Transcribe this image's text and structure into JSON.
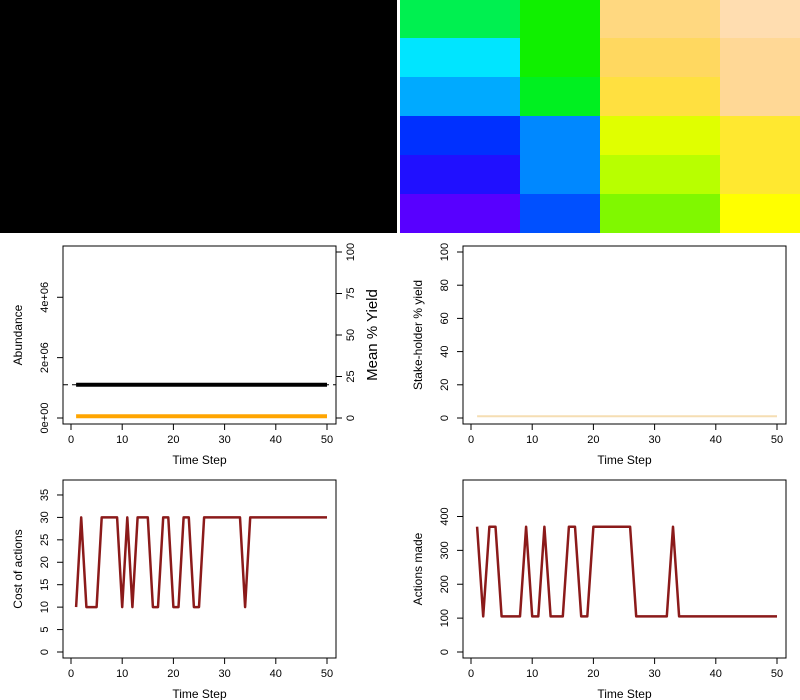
{
  "colors": {
    "abundance_line": "#000000",
    "yield_line": "#FFA500",
    "stakeholder_line": "#F5DEB3",
    "action_line": "#8B1A1A",
    "background": "#FFFFFF",
    "black_panel": "#000000"
  },
  "chart_data": [
    {
      "id": "cell-heatmap",
      "type": "heatmap",
      "rows": 6,
      "columns": 4,
      "cells": [
        [
          "#00F050",
          "#10F000",
          "#FFD880",
          "#FFDDB0"
        ],
        [
          "#00E5FF",
          "#10F000",
          "#FFD860",
          "#FFD896"
        ],
        [
          "#00AAFF",
          "#00F020",
          "#FFE040",
          "#FFD896"
        ],
        [
          "#0030FF",
          "#0088FF",
          "#E0FF00",
          "#FFE830"
        ],
        [
          "#2010FF",
          "#0088FF",
          "#B8FF00",
          "#FFE830"
        ],
        [
          "#5800FF",
          "#0050FF",
          "#80F800",
          "#FFFF00"
        ]
      ]
    },
    {
      "id": "abundance-plot",
      "type": "line",
      "xlabel": "Time Step",
      "ylabel": "Abundance",
      "ylabel_right": "Mean % Yield",
      "xlim": [
        0,
        50
      ],
      "ylim": [
        0,
        5500000
      ],
      "ylim_right": [
        0,
        100
      ],
      "x_ticks": [
        0,
        10,
        20,
        30,
        40,
        50
      ],
      "x_tick_labels": [
        "0",
        "10",
        "20",
        "30",
        "40",
        "50"
      ],
      "y_ticks": [
        0,
        2000000,
        4000000
      ],
      "y_tick_labels": [
        "0e+00",
        "2e+06",
        "4e+06"
      ],
      "y_ticks_right": [
        0,
        25,
        50,
        75,
        100
      ],
      "y_tick_labels_right": [
        "0",
        "25",
        "50",
        "75",
        "100"
      ],
      "reference_line_value": 1100000,
      "series": [
        {
          "x": [
            1,
            50
          ],
          "values": [
            1100000,
            1100000
          ]
        },
        {
          "axis": "right",
          "x": [
            1,
            50
          ],
          "values": [
            1,
            1
          ]
        }
      ]
    },
    {
      "id": "stakeholder-plot",
      "type": "line",
      "xlabel": "Time Step",
      "ylabel": "Stake-holder % yield",
      "xlim": [
        0,
        50
      ],
      "ylim": [
        0,
        100
      ],
      "x_ticks": [
        0,
        10,
        20,
        30,
        40,
        50
      ],
      "x_tick_labels": [
        "0",
        "10",
        "20",
        "30",
        "40",
        "50"
      ],
      "y_ticks": [
        0,
        20,
        40,
        60,
        80,
        100
      ],
      "y_tick_labels": [
        "0",
        "20",
        "40",
        "60",
        "80",
        "100"
      ],
      "series": [
        {
          "x": [
            1,
            50
          ],
          "values": [
            1,
            1
          ]
        }
      ]
    },
    {
      "id": "cost-plot",
      "type": "line",
      "xlabel": "Time Step",
      "ylabel": "Cost of actions",
      "xlim": [
        0,
        50
      ],
      "ylim": [
        0,
        37
      ],
      "x_ticks": [
        0,
        10,
        20,
        30,
        40,
        50
      ],
      "x_tick_labels": [
        "0",
        "10",
        "20",
        "30",
        "40",
        "50"
      ],
      "y_ticks": [
        0,
        5,
        10,
        15,
        20,
        25,
        30,
        35
      ],
      "y_tick_labels": [
        "0",
        "5",
        "10",
        "15",
        "20",
        "25",
        "30",
        "35"
      ],
      "series": [
        {
          "x": [
            1,
            2,
            3,
            4,
            5,
            6,
            7,
            8,
            9,
            10,
            11,
            12,
            13,
            14,
            15,
            16,
            17,
            18,
            19,
            20,
            21,
            22,
            23,
            24,
            25,
            26,
            27,
            28,
            29,
            30,
            31,
            32,
            33,
            34,
            35,
            36,
            37,
            38,
            39,
            40,
            41,
            42,
            43,
            44,
            45,
            46,
            47,
            48,
            49,
            50
          ],
          "values": [
            10,
            30,
            10,
            10,
            10,
            30,
            30,
            30,
            30,
            10,
            30,
            10,
            30,
            30,
            30,
            10,
            10,
            30,
            30,
            10,
            10,
            30,
            30,
            10,
            10,
            30,
            30,
            30,
            30,
            30,
            30,
            30,
            30,
            10,
            30,
            30,
            30,
            30,
            30,
            30,
            30,
            30,
            30,
            30,
            30,
            30,
            30,
            30,
            30,
            30
          ]
        }
      ]
    },
    {
      "id": "actions-plot",
      "type": "line",
      "xlabel": "Time Step",
      "ylabel": "Actions made",
      "xlim": [
        0,
        50
      ],
      "ylim": [
        0,
        490
      ],
      "x_ticks": [
        0,
        10,
        20,
        30,
        40,
        50
      ],
      "x_tick_labels": [
        "0",
        "10",
        "20",
        "30",
        "40",
        "50"
      ],
      "y_ticks": [
        0,
        100,
        200,
        300,
        400
      ],
      "y_tick_labels": [
        "0",
        "100",
        "200",
        "300",
        "400"
      ],
      "series": [
        {
          "x": [
            1,
            2,
            3,
            4,
            5,
            6,
            7,
            8,
            9,
            10,
            11,
            12,
            13,
            14,
            15,
            16,
            17,
            18,
            19,
            20,
            21,
            22,
            23,
            24,
            25,
            26,
            27,
            28,
            29,
            30,
            31,
            32,
            33,
            34,
            35,
            36,
            37,
            38,
            39,
            40,
            41,
            42,
            43,
            44,
            45,
            46,
            47,
            48,
            49,
            50
          ],
          "values": [
            370,
            105,
            370,
            370,
            105,
            105,
            105,
            105,
            370,
            105,
            105,
            370,
            105,
            105,
            105,
            370,
            370,
            105,
            105,
            370,
            370,
            370,
            370,
            370,
            370,
            370,
            105,
            105,
            105,
            105,
            105,
            105,
            370,
            105,
            105,
            105,
            105,
            105,
            105,
            105,
            105,
            105,
            105,
            105,
            105,
            105,
            105,
            105,
            105,
            105
          ]
        }
      ]
    }
  ]
}
